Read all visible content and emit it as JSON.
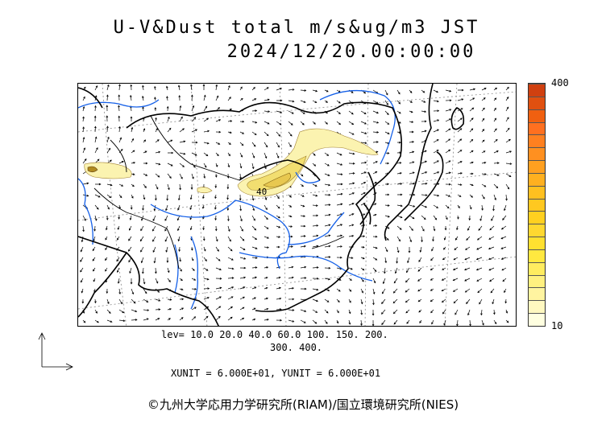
{
  "title": {
    "line1": "U-V&Dust total m/s&ug/m3 JST",
    "line2": "2024/12/20.00:00:00"
  },
  "colorbar": {
    "max_label": "400",
    "min_label": "10",
    "colors": [
      "#ffffe0",
      "#fff8c0",
      "#fff4a0",
      "#fff080",
      "#ffec60",
      "#ffe840",
      "#ffe030",
      "#ffd830",
      "#ffd020",
      "#ffc820",
      "#ffc020",
      "#ffb020",
      "#ffa020",
      "#ff9020",
      "#ff8020",
      "#ff7020",
      "#f06010",
      "#e05010",
      "#d04010"
    ]
  },
  "contour_label": "40",
  "levels": {
    "line1": "lev= 10.0 20.0 40.0 60.0 100. 150. 200.",
    "line2": "300. 400."
  },
  "units": "XUNIT = 6.000E+01, YUNIT = 6.000E+01",
  "credit": "©九州大学応用力学研究所(RIAM)/国立環境研究所(NIES)",
  "colors": {
    "coast": "#000000",
    "river": "#1560e8",
    "grid": "#888888",
    "dust_low": "#fbf3b0",
    "dust_mid": "#f2de70",
    "dust_high": "#b08a20"
  }
}
